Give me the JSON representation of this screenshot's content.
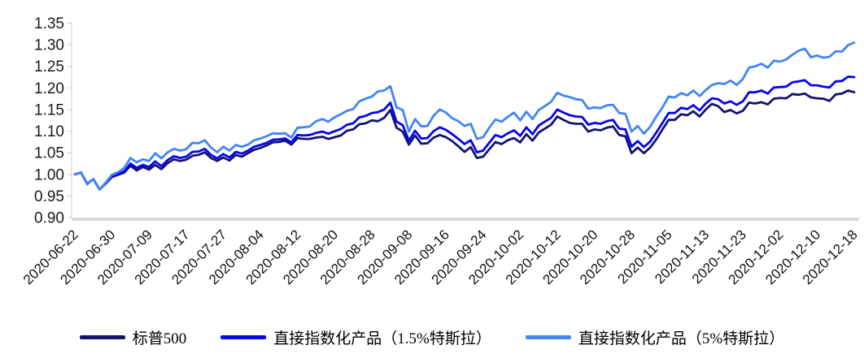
{
  "chart_data": {
    "type": "line",
    "title": "",
    "xlabel": "",
    "ylabel": "",
    "grid": false,
    "legend_position": "bottom",
    "ylim": [
      0.9,
      1.35
    ],
    "yticks": [
      0.9,
      0.95,
      1.0,
      1.05,
      1.1,
      1.15,
      1.2,
      1.25,
      1.3,
      1.35
    ],
    "ytick_labels": [
      "0.90",
      "0.95",
      "1.00",
      "1.05",
      "1.10",
      "1.15",
      "1.20",
      "1.25",
      "1.30",
      "1.35"
    ],
    "axis_color": "#d9d9d9",
    "tick_color": "#d2d2d2",
    "label_color": "#1a1a1a",
    "xtick_indices": [
      0,
      6,
      12,
      18,
      24,
      30,
      36,
      42,
      48,
      54,
      60,
      66,
      72,
      78,
      84,
      90,
      96,
      102,
      108,
      114,
      120,
      126
    ],
    "xtick_labels": [
      "2020-06-22",
      "2020-06-30",
      "2020-07-09",
      "2020-07-17",
      "2020-07-27",
      "2020-08-04",
      "2020-08-12",
      "2020-08-20",
      "2020-08-28",
      "2020-09-08",
      "2020-09-16",
      "2020-09-24",
      "2020-10-02",
      "2020-10-12",
      "2020-10-20",
      "2020-10-28",
      "2020-11-05",
      "2020-11-13",
      "2020-11-23",
      "2020-12-02",
      "2020-12-10",
      "2020-12-18"
    ],
    "x": [
      "2020-06-22",
      "2020-06-23",
      "2020-06-24",
      "2020-06-25",
      "2020-06-26",
      "2020-06-29",
      "2020-06-30",
      "2020-07-01",
      "2020-07-02",
      "2020-07-06",
      "2020-07-07",
      "2020-07-08",
      "2020-07-09",
      "2020-07-10",
      "2020-07-13",
      "2020-07-14",
      "2020-07-15",
      "2020-07-16",
      "2020-07-17",
      "2020-07-20",
      "2020-07-21",
      "2020-07-22",
      "2020-07-23",
      "2020-07-24",
      "2020-07-27",
      "2020-07-28",
      "2020-07-29",
      "2020-07-30",
      "2020-07-31",
      "2020-08-03",
      "2020-08-04",
      "2020-08-05",
      "2020-08-06",
      "2020-08-07",
      "2020-08-10",
      "2020-08-11",
      "2020-08-12",
      "2020-08-13",
      "2020-08-14",
      "2020-08-17",
      "2020-08-18",
      "2020-08-19",
      "2020-08-20",
      "2020-08-21",
      "2020-08-24",
      "2020-08-25",
      "2020-08-26",
      "2020-08-27",
      "2020-08-28",
      "2020-08-31",
      "2020-09-01",
      "2020-09-02",
      "2020-09-03",
      "2020-09-04",
      "2020-09-08",
      "2020-09-09",
      "2020-09-10",
      "2020-09-11",
      "2020-09-14",
      "2020-09-15",
      "2020-09-16",
      "2020-09-17",
      "2020-09-18",
      "2020-09-21",
      "2020-09-22",
      "2020-09-23",
      "2020-09-24",
      "2020-09-25",
      "2020-09-28",
      "2020-09-29",
      "2020-09-30",
      "2020-10-01",
      "2020-10-02",
      "2020-10-05",
      "2020-10-06",
      "2020-10-07",
      "2020-10-08",
      "2020-10-09",
      "2020-10-12",
      "2020-10-13",
      "2020-10-14",
      "2020-10-15",
      "2020-10-16",
      "2020-10-19",
      "2020-10-20",
      "2020-10-21",
      "2020-10-22",
      "2020-10-23",
      "2020-10-26",
      "2020-10-27",
      "2020-10-28",
      "2020-10-29",
      "2020-10-30",
      "2020-11-02",
      "2020-11-03",
      "2020-11-04",
      "2020-11-05",
      "2020-11-06",
      "2020-11-09",
      "2020-11-10",
      "2020-11-11",
      "2020-11-12",
      "2020-11-13",
      "2020-11-16",
      "2020-11-17",
      "2020-11-18",
      "2020-11-19",
      "2020-11-20",
      "2020-11-23",
      "2020-11-24",
      "2020-11-25",
      "2020-11-27",
      "2020-11-30",
      "2020-12-01",
      "2020-12-02",
      "2020-12-03",
      "2020-12-04",
      "2020-12-07",
      "2020-12-08",
      "2020-12-09",
      "2020-12-10",
      "2020-12-11",
      "2020-12-14",
      "2020-12-15",
      "2020-12-16",
      "2020-12-17",
      "2020-12-18"
    ],
    "series": [
      {
        "name": "标普500",
        "color": "#131370",
        "values": [
          1.0,
          1.004,
          0.978,
          0.989,
          0.965,
          0.979,
          0.994,
          0.999,
          1.004,
          1.02,
          1.009,
          1.017,
          1.011,
          1.022,
          1.012,
          1.026,
          1.035,
          1.031,
          1.034,
          1.043,
          1.045,
          1.051,
          1.038,
          1.031,
          1.039,
          1.032,
          1.045,
          1.041,
          1.049,
          1.057,
          1.061,
          1.067,
          1.074,
          1.075,
          1.078,
          1.069,
          1.084,
          1.082,
          1.082,
          1.085,
          1.087,
          1.082,
          1.086,
          1.09,
          1.101,
          1.104,
          1.116,
          1.118,
          1.125,
          1.123,
          1.131,
          1.149,
          1.108,
          1.099,
          1.069,
          1.09,
          1.071,
          1.072,
          1.085,
          1.091,
          1.086,
          1.077,
          1.065,
          1.052,
          1.063,
          1.038,
          1.041,
          1.058,
          1.075,
          1.07,
          1.079,
          1.084,
          1.074,
          1.093,
          1.078,
          1.097,
          1.106,
          1.115,
          1.134,
          1.126,
          1.119,
          1.117,
          1.117,
          1.099,
          1.104,
          1.102,
          1.108,
          1.111,
          1.091,
          1.088,
          1.049,
          1.062,
          1.049,
          1.062,
          1.081,
          1.104,
          1.126,
          1.126,
          1.139,
          1.137,
          1.146,
          1.134,
          1.15,
          1.163,
          1.158,
          1.144,
          1.149,
          1.141,
          1.147,
          1.166,
          1.164,
          1.167,
          1.162,
          1.175,
          1.177,
          1.176,
          1.186,
          1.184,
          1.187,
          1.178,
          1.176,
          1.175,
          1.17,
          1.185,
          1.187,
          1.194,
          1.19
        ]
      },
      {
        "name": "直接指数化产品（1.5%特斯拉）",
        "color": "#0404f0",
        "values": [
          1.0,
          1.004,
          0.978,
          0.989,
          0.965,
          0.98,
          0.995,
          1.001,
          1.007,
          1.025,
          1.015,
          1.022,
          1.017,
          1.03,
          1.019,
          1.033,
          1.042,
          1.038,
          1.041,
          1.052,
          1.053,
          1.059,
          1.045,
          1.037,
          1.047,
          1.039,
          1.052,
          1.048,
          1.055,
          1.064,
          1.068,
          1.073,
          1.08,
          1.081,
          1.083,
          1.074,
          1.091,
          1.09,
          1.091,
          1.096,
          1.099,
          1.094,
          1.1,
          1.105,
          1.115,
          1.118,
          1.132,
          1.135,
          1.142,
          1.144,
          1.15,
          1.166,
          1.122,
          1.114,
          1.078,
          1.101,
          1.083,
          1.084,
          1.1,
          1.109,
          1.103,
          1.093,
          1.082,
          1.07,
          1.079,
          1.051,
          1.055,
          1.073,
          1.091,
          1.086,
          1.095,
          1.102,
          1.089,
          1.109,
          1.093,
          1.113,
          1.122,
          1.131,
          1.15,
          1.143,
          1.137,
          1.134,
          1.133,
          1.115,
          1.119,
          1.117,
          1.123,
          1.126,
          1.106,
          1.104,
          1.064,
          1.077,
          1.063,
          1.076,
          1.097,
          1.119,
          1.142,
          1.142,
          1.154,
          1.151,
          1.16,
          1.148,
          1.164,
          1.176,
          1.174,
          1.164,
          1.169,
          1.161,
          1.169,
          1.19,
          1.19,
          1.194,
          1.187,
          1.201,
          1.202,
          1.203,
          1.213,
          1.215,
          1.218,
          1.206,
          1.206,
          1.203,
          1.201,
          1.215,
          1.216,
          1.226,
          1.225
        ]
      },
      {
        "name": "直接指数化产品（5%特斯拉）",
        "color": "#4185f5",
        "values": [
          1.0,
          1.004,
          0.977,
          0.989,
          0.965,
          0.981,
          0.999,
          1.005,
          1.015,
          1.038,
          1.028,
          1.035,
          1.031,
          1.049,
          1.037,
          1.051,
          1.059,
          1.055,
          1.058,
          1.073,
          1.072,
          1.079,
          1.062,
          1.051,
          1.064,
          1.055,
          1.068,
          1.064,
          1.069,
          1.079,
          1.083,
          1.088,
          1.095,
          1.094,
          1.095,
          1.085,
          1.108,
          1.109,
          1.111,
          1.123,
          1.128,
          1.122,
          1.132,
          1.139,
          1.147,
          1.151,
          1.169,
          1.175,
          1.18,
          1.192,
          1.194,
          1.204,
          1.155,
          1.149,
          1.099,
          1.128,
          1.111,
          1.112,
          1.136,
          1.15,
          1.143,
          1.13,
          1.123,
          1.112,
          1.117,
          1.082,
          1.086,
          1.108,
          1.127,
          1.122,
          1.133,
          1.143,
          1.125,
          1.145,
          1.128,
          1.149,
          1.158,
          1.168,
          1.189,
          1.182,
          1.179,
          1.174,
          1.172,
          1.152,
          1.155,
          1.153,
          1.16,
          1.161,
          1.142,
          1.14,
          1.099,
          1.112,
          1.094,
          1.11,
          1.134,
          1.155,
          1.18,
          1.178,
          1.188,
          1.183,
          1.194,
          1.181,
          1.195,
          1.207,
          1.211,
          1.209,
          1.217,
          1.207,
          1.221,
          1.247,
          1.25,
          1.256,
          1.247,
          1.263,
          1.261,
          1.266,
          1.277,
          1.286,
          1.291,
          1.271,
          1.275,
          1.27,
          1.272,
          1.285,
          1.284,
          1.299,
          1.305
        ]
      }
    ]
  },
  "legend": {
    "items": [
      "标普500",
      "直接指数化产品（1.5%特斯拉）",
      "直接指数化产品（5%特斯拉）"
    ]
  }
}
